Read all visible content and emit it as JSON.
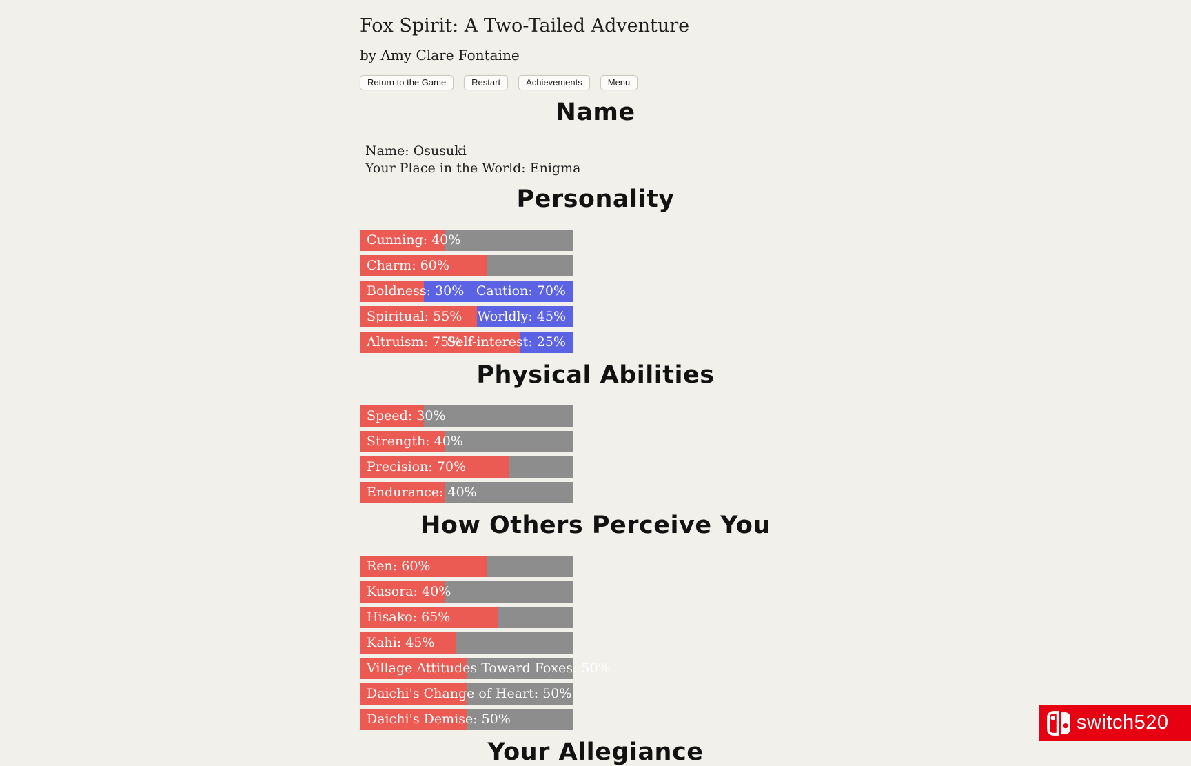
{
  "page": {
    "title": "Fox Spirit: A Two-Tailed Adventure",
    "byline": "by Amy Clare Fontaine",
    "background_color": "#f2f0eb"
  },
  "toolbar": {
    "buttons": [
      {
        "label": "Return to the Game"
      },
      {
        "label": "Restart"
      },
      {
        "label": "Achievements"
      },
      {
        "label": "Menu"
      }
    ]
  },
  "colors": {
    "stat_fill": "#ec5b53",
    "stat_opposed_fill": "#5c62e4",
    "stat_track": "#8e8d8d",
    "stat_label_text": "#ffffff",
    "watermark_red": "#e60012"
  },
  "sections": [
    {
      "heading": "Name",
      "type": "text",
      "lines": [
        "Name: Osusuki",
        "Your Place in the World: Enigma"
      ]
    },
    {
      "heading": "Personality",
      "type": "bars",
      "bars": [
        {
          "name": "cunning",
          "label": "Cunning: 40%",
          "percent": 40
        },
        {
          "name": "charm",
          "label": "Charm: 60%",
          "percent": 60
        },
        {
          "name": "boldness-caution",
          "label": "Boldness: 30%",
          "percent": 30,
          "opposed_label": "Caution: 70%"
        },
        {
          "name": "spiritual-worldly",
          "label": "Spiritual: 55%",
          "percent": 55,
          "opposed_label": "Worldly: 45%"
        },
        {
          "name": "altruism-self-interest",
          "label": "Altruism: 75%",
          "percent": 75,
          "opposed_label": "Self-interest: 25%"
        }
      ]
    },
    {
      "heading": "Physical Abilities",
      "type": "bars",
      "bars": [
        {
          "name": "speed",
          "label": "Speed: 30%",
          "percent": 30
        },
        {
          "name": "strength",
          "label": "Strength: 40%",
          "percent": 40
        },
        {
          "name": "precision",
          "label": "Precision: 70%",
          "percent": 70
        },
        {
          "name": "endurance",
          "label": "Endurance: 40%",
          "percent": 40
        }
      ]
    },
    {
      "heading": "How Others Perceive You",
      "type": "bars",
      "bars": [
        {
          "name": "ren",
          "label": "Ren: 60%",
          "percent": 60
        },
        {
          "name": "kusora",
          "label": "Kusora: 40%",
          "percent": 40
        },
        {
          "name": "hisako",
          "label": "Hisako: 65%",
          "percent": 65
        },
        {
          "name": "kahi",
          "label": "Kahi: 45%",
          "percent": 45
        },
        {
          "name": "village-attitudes-toward-foxes",
          "label": "Village Attitudes Toward Foxes: 50%",
          "percent": 50
        },
        {
          "name": "daichis-change-of-heart",
          "label": "Daichi's Change of Heart: 50%",
          "percent": 50
        },
        {
          "name": "daichis-demise",
          "label": "Daichi's Demise: 50%",
          "percent": 50
        }
      ]
    },
    {
      "heading": "Your Allegiance",
      "type": "bars",
      "bars": []
    }
  ],
  "watermark": {
    "text": "switch520"
  }
}
